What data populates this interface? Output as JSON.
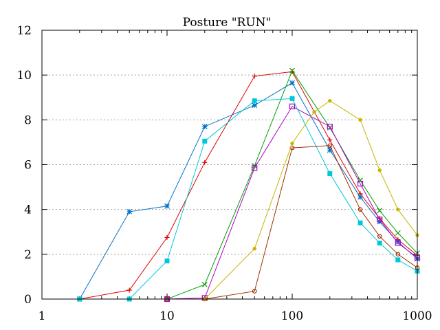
{
  "chart_data": {
    "type": "line",
    "title": "Posture \"RUN\"",
    "xlabel": "",
    "ylabel": "",
    "xscale": "log",
    "xlim": [
      1,
      1000
    ],
    "ylim": [
      0,
      12
    ],
    "grid": "y-dotted",
    "x_tick_labels": [
      "1",
      "10",
      "100",
      "1000"
    ],
    "x_ticks": [
      1,
      10,
      100,
      1000
    ],
    "y_tick_labels": [
      "0",
      "2",
      "4",
      "6",
      "8",
      "10",
      "12"
    ],
    "y_ticks": [
      0,
      2,
      4,
      6,
      8,
      10,
      12
    ],
    "series": [
      {
        "color": "#e00000",
        "marker": "plus",
        "points": [
          [
            2,
            0
          ],
          [
            5,
            0.4
          ],
          [
            10,
            2.75
          ],
          [
            20,
            6.1
          ],
          [
            50,
            9.95
          ],
          [
            100,
            10.15
          ],
          [
            200,
            7.1
          ],
          [
            350,
            4.7
          ],
          [
            500,
            3.6
          ],
          [
            700,
            2.65
          ],
          [
            1000,
            1.95
          ]
        ]
      },
      {
        "color": "#009e00",
        "marker": "cross",
        "points": [
          [
            10,
            0
          ],
          [
            20,
            0.65
          ],
          [
            50,
            5.95
          ],
          [
            100,
            10.2
          ],
          [
            200,
            7.65
          ],
          [
            350,
            5.3
          ],
          [
            500,
            3.95
          ],
          [
            700,
            2.95
          ],
          [
            1000,
            2.05
          ]
        ]
      },
      {
        "color": "#0070c8",
        "marker": "star",
        "points": [
          [
            2,
            0
          ],
          [
            5,
            3.9
          ],
          [
            10,
            4.15
          ],
          [
            20,
            7.7
          ],
          [
            50,
            8.65
          ],
          [
            100,
            9.65
          ],
          [
            200,
            6.65
          ],
          [
            350,
            4.55
          ],
          [
            500,
            3.45
          ],
          [
            700,
            2.55
          ],
          [
            1000,
            1.8
          ]
        ]
      },
      {
        "color": "#b000c8",
        "marker": "open-square",
        "points": [
          [
            10,
            0
          ],
          [
            20,
            0.05
          ],
          [
            50,
            5.85
          ],
          [
            100,
            8.6
          ],
          [
            200,
            7.7
          ],
          [
            350,
            5.15
          ],
          [
            500,
            3.55
          ],
          [
            700,
            2.5
          ],
          [
            1000,
            1.85
          ]
        ]
      },
      {
        "color": "#00c8d8",
        "marker": "filled-square",
        "points": [
          [
            2,
            0
          ],
          [
            5,
            0
          ],
          [
            10,
            1.7
          ],
          [
            20,
            7.05
          ],
          [
            50,
            8.85
          ],
          [
            100,
            8.95
          ],
          [
            200,
            5.6
          ],
          [
            350,
            3.4
          ],
          [
            500,
            2.5
          ],
          [
            700,
            1.75
          ],
          [
            1000,
            1.25
          ]
        ]
      },
      {
        "color": "#a03000",
        "marker": "open-circle",
        "points": [
          [
            10,
            0
          ],
          [
            20,
            0
          ],
          [
            50,
            0.35
          ],
          [
            100,
            6.75
          ],
          [
            200,
            6.85
          ],
          [
            350,
            4.0
          ],
          [
            500,
            2.8
          ],
          [
            700,
            2.0
          ],
          [
            1000,
            1.4
          ]
        ]
      },
      {
        "color": "#c8b400",
        "marker": "filled-circle",
        "points": [
          [
            20,
            0
          ],
          [
            50,
            2.25
          ],
          [
            100,
            6.95
          ],
          [
            150,
            8.35
          ],
          [
            200,
            8.85
          ],
          [
            350,
            8.0
          ],
          [
            500,
            5.75
          ],
          [
            700,
            4.0
          ],
          [
            1000,
            2.85
          ]
        ]
      }
    ]
  }
}
